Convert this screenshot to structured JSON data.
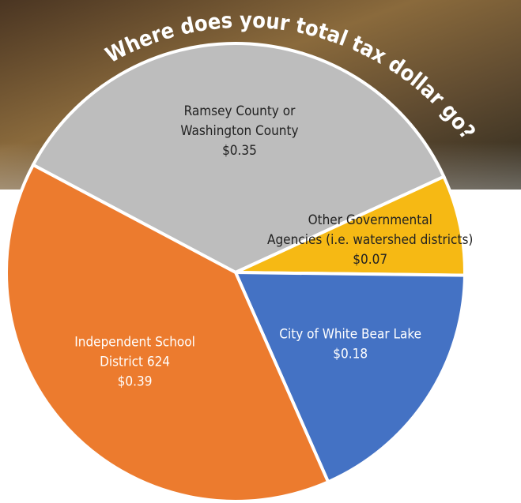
{
  "chart_data": {
    "type": "pie",
    "title": "Where does your total tax dollar go?",
    "categories": [
      "Ramsey County or\nWashington County",
      "Other Governmental\nAgencies (i.e. watershed districts)",
      "City of White Bear Lake",
      "Independent School\nDistrict 624"
    ],
    "values": [
      0.35,
      0.07,
      0.18,
      0.39
    ],
    "value_labels": [
      "$0.35",
      "$0.07",
      "$0.18",
      "$0.39"
    ],
    "colors": [
      "#bdbdbd",
      "#f6b914",
      "#4472c4",
      "#ec7b2e"
    ]
  }
}
